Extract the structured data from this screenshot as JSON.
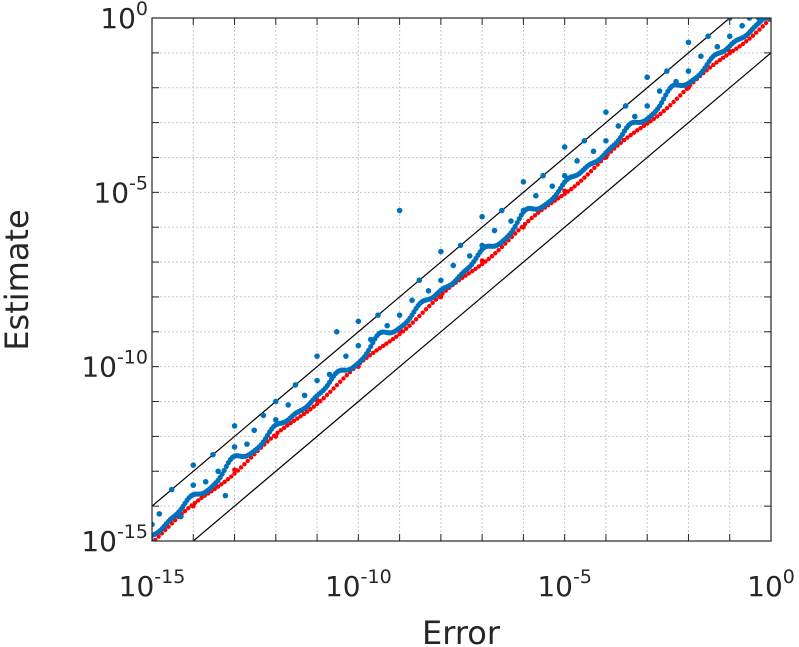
{
  "chart_data": {
    "type": "scatter",
    "title": "",
    "xlabel": "Error",
    "ylabel": "Estimate",
    "xscale": "log",
    "yscale": "log",
    "xlim": [
      1e-15,
      1
    ],
    "ylim": [
      1e-15,
      1
    ],
    "grid": true,
    "minor_grid": true,
    "legend": "none",
    "x_ticks": [
      {
        "base": "10",
        "exp": "-15"
      },
      {
        "base": "10",
        "exp": "-10"
      },
      {
        "base": "10",
        "exp": "-5"
      },
      {
        "base": "10",
        "exp": "0"
      }
    ],
    "y_ticks": [
      {
        "base": "10",
        "exp": "-15"
      },
      {
        "base": "10",
        "exp": "-10"
      },
      {
        "base": "10",
        "exp": "-5"
      },
      {
        "base": "10",
        "exp": "0"
      }
    ],
    "colors": {
      "scatter": "#0072BD",
      "lower_bound": "#FF0000",
      "reference_lines": "#000000",
      "grid": "#c8c8c8",
      "axis": "#262626"
    },
    "reference_lines": [
      {
        "style": "solid-black",
        "x": [
          1e-15,
          1
        ],
        "y": [
          1e-14,
          10.0
        ]
      },
      {
        "style": "solid-black",
        "x": [
          1e-15,
          1
        ],
        "y": [
          1e-16,
          0.1
        ]
      }
    ],
    "series": [
      {
        "style": "red-dots",
        "description_points": [
          [
            1e-15,
            1e-15
          ],
          [
            1e-14,
            1e-14
          ],
          [
            1e-13,
            1.1e-13
          ],
          [
            1e-12,
            1e-12
          ],
          [
            1e-11,
            1.1e-11
          ],
          [
            1e-10,
            1e-10
          ],
          [
            1e-09,
            1.1e-09
          ],
          [
            1e-08,
            1e-08
          ],
          [
            1e-07,
            1.1e-07
          ],
          [
            1e-06,
            1e-06
          ],
          [
            1e-05,
            1.1e-05
          ],
          [
            0.0001,
            0.0001
          ],
          [
            0.001,
            0.0011
          ],
          [
            0.01,
            0.01
          ],
          [
            0.1,
            0.11
          ],
          [
            1,
            1
          ]
        ]
      },
      {
        "style": "blue-dots",
        "description_points": [
          [
            1e-15,
            1e-15
          ],
          [
            1e-15,
            3e-15
          ],
          [
            1.5e-15,
            6e-15
          ],
          [
            3e-15,
            3e-14
          ],
          [
            5e-15,
            5e-15
          ],
          [
            1e-14,
            4e-14
          ],
          [
            1e-14,
            1.5e-13
          ],
          [
            2e-14,
            5e-14
          ],
          [
            3e-14,
            3e-13
          ],
          [
            4e-14,
            1e-13
          ],
          [
            6e-14,
            2e-14
          ],
          [
            1e-13,
            5e-13
          ],
          [
            1e-13,
            2e-12
          ],
          [
            2e-13,
            6e-13
          ],
          [
            3e-13,
            1.5e-12
          ],
          [
            5e-13,
            4e-12
          ],
          [
            1e-12,
            3e-12
          ],
          [
            1e-12,
            1e-11
          ],
          [
            2e-12,
            8e-12
          ],
          [
            3e-12,
            3e-11
          ],
          [
            5e-12,
            1.5e-11
          ],
          [
            1e-11,
            4e-11
          ],
          [
            1e-11,
            2e-10
          ],
          [
            2e-11,
            6e-11
          ],
          [
            3e-11,
            1e-09
          ],
          [
            5e-11,
            2e-10
          ],
          [
            1e-10,
            4e-10
          ],
          [
            1e-10,
            2e-09
          ],
          [
            2e-10,
            6e-10
          ],
          [
            3e-10,
            3e-09
          ],
          [
            5e-10,
            1.5e-09
          ],
          [
            1e-09,
            3e-09
          ],
          [
            1e-09,
            3e-06
          ],
          [
            2e-09,
            8e-09
          ],
          [
            3e-09,
            3e-08
          ],
          [
            5e-09,
            1.5e-08
          ],
          [
            1e-08,
            3e-08
          ],
          [
            1e-08,
            2e-07
          ],
          [
            2e-08,
            8e-08
          ],
          [
            3e-08,
            3e-07
          ],
          [
            5e-08,
            1.5e-07
          ],
          [
            1e-07,
            3e-07
          ],
          [
            1e-07,
            2e-06
          ],
          [
            2e-07,
            8e-07
          ],
          [
            3e-07,
            3e-06
          ],
          [
            5e-07,
            1.5e-06
          ],
          [
            1e-06,
            3e-06
          ],
          [
            1e-06,
            2e-05
          ],
          [
            2e-06,
            8e-06
          ],
          [
            3e-06,
            3e-05
          ],
          [
            5e-06,
            1.5e-05
          ],
          [
            1e-05,
            3e-05
          ],
          [
            1e-05,
            0.0002
          ],
          [
            2e-05,
            8e-05
          ],
          [
            3e-05,
            0.0003
          ],
          [
            5e-05,
            0.00015
          ],
          [
            0.0001,
            0.0003
          ],
          [
            0.0001,
            0.002
          ],
          [
            0.0002,
            0.0008
          ],
          [
            0.0003,
            0.003
          ],
          [
            0.0005,
            0.0015
          ],
          [
            0.001,
            0.003
          ],
          [
            0.001,
            0.02
          ],
          [
            0.002,
            0.008
          ],
          [
            0.003,
            0.03
          ],
          [
            0.005,
            0.015
          ],
          [
            0.01,
            0.03
          ],
          [
            0.01,
            0.2
          ],
          [
            0.02,
            0.08
          ],
          [
            0.03,
            0.3
          ],
          [
            0.05,
            0.15
          ],
          [
            0.1,
            0.3
          ],
          [
            0.1,
            1
          ],
          [
            0.2,
            0.6
          ],
          [
            0.3,
            1
          ],
          [
            0.5,
            1
          ],
          [
            1,
            1
          ]
        ]
      }
    ]
  }
}
